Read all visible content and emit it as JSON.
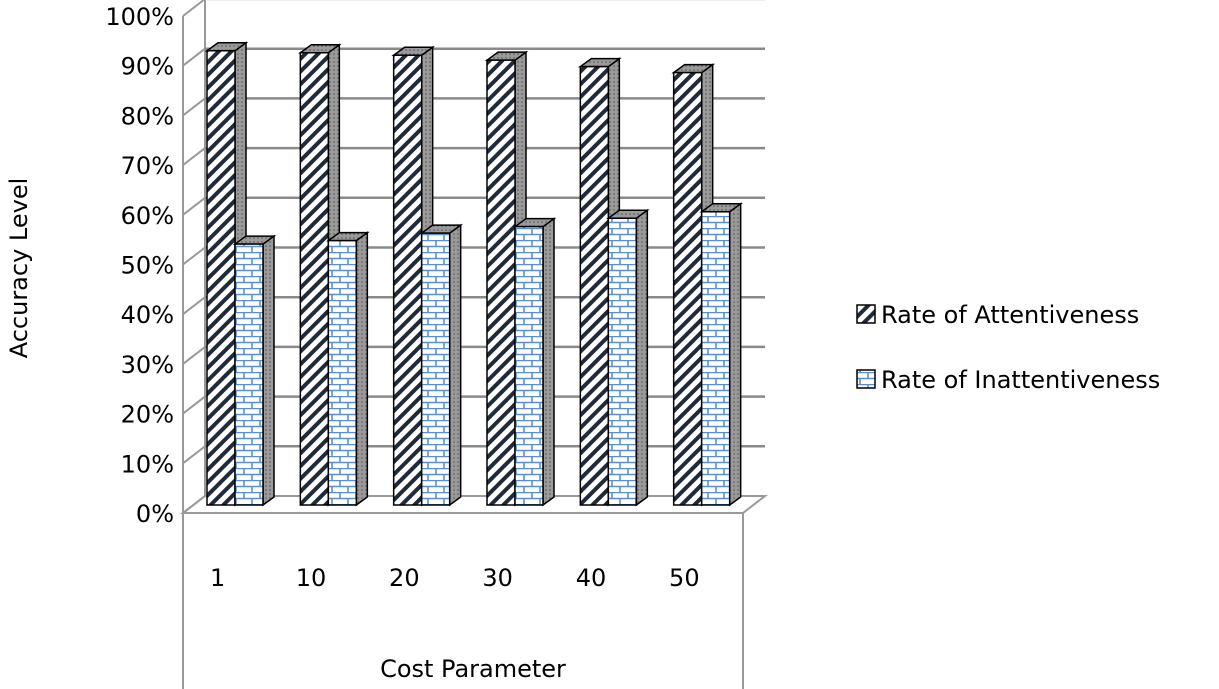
{
  "chart_data": {
    "type": "bar",
    "three_d": true,
    "categories": [
      "1",
      "10",
      "20",
      "30",
      "40",
      "50"
    ],
    "series": [
      {
        "name": "Rate of Attentiveness",
        "values": [
          91.4,
          91.0,
          90.5,
          89.5,
          88.2,
          87.0
        ],
        "pattern": "diagonal-hatch",
        "color": "#1f2a3a"
      },
      {
        "name": "Rate of Inattentiveness",
        "values": [
          52.5,
          53.2,
          54.7,
          56.0,
          57.7,
          59.0
        ],
        "pattern": "brick",
        "color": "#5b8fd0"
      }
    ],
    "title": "",
    "xlabel": "Cost Parameter",
    "ylabel": "Accuracy Level",
    "ylim": [
      0,
      100
    ],
    "yticks": [
      "0%",
      "10%",
      "20%",
      "30%",
      "40%",
      "50%",
      "60%",
      "70%",
      "80%",
      "90%",
      "100%"
    ],
    "grid": true,
    "legend": "right"
  }
}
